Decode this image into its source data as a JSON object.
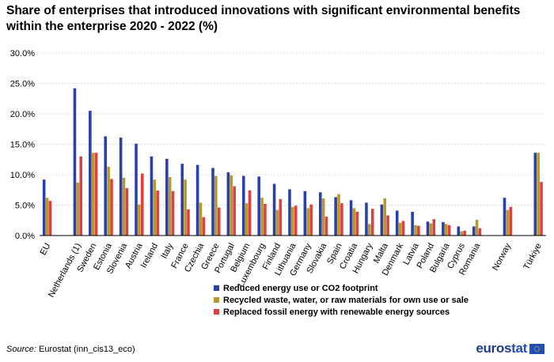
{
  "title": "Share of enterprises that introduced innovations with significant environmental benefits within the enterprise 2020 - 2022 (%)",
  "source_label": "Source:",
  "source_value": "Eurostat (inn_cis13_eco)",
  "logo_text": "eurostat",
  "colors": {
    "series_1": "#2a3fa8",
    "series_2": "#b8982a",
    "series_3": "#dc4040",
    "grid": "#d9d9d9",
    "logo_dark": "#1e3c8c",
    "logo_light": "#1f4fb4"
  },
  "chart_data": {
    "type": "bar",
    "title": "Share of enterprises that introduced innovations with significant environmental benefits within the enterprise 2020 - 2022 (%)",
    "xlabel": "",
    "ylabel": "",
    "ylim": [
      0,
      30
    ],
    "yticks": [
      0,
      5,
      10,
      15,
      20,
      25,
      30
    ],
    "ytick_labels": [
      "0.0%",
      "5.0%",
      "10.0%",
      "15.0%",
      "20.0%",
      "25.0%",
      "30.0%"
    ],
    "grid": true,
    "legend_position": "bottom",
    "categories": [
      "EU",
      "Netherlands (1)",
      "Sweden",
      "Estonia",
      "Slovenia",
      "Austria",
      "Ireland",
      "Italy",
      "France",
      "Czechia",
      "Greece",
      "Portugal",
      "Belgium",
      "Luxembourg",
      "Finland",
      "Lithuania",
      "Germany",
      "Slovakia",
      "Spain",
      "Croatia",
      "Hungary",
      "Malta",
      "Denmark",
      "Latvia",
      "Poland",
      "Bulgaria",
      "Cyprus",
      "Romania",
      "Norway",
      "Türkiye"
    ],
    "gap_after": [
      "EU",
      "Romania",
      "Norway"
    ],
    "series": [
      {
        "name": "Reduced energy use or CO2 footprint",
        "values": [
          9.2,
          24.2,
          20.5,
          16.3,
          16.1,
          15.1,
          13.0,
          12.6,
          11.8,
          11.6,
          11.1,
          10.4,
          9.8,
          9.7,
          8.5,
          7.6,
          7.3,
          7.1,
          6.3,
          5.8,
          5.4,
          5.1,
          4.1,
          3.9,
          2.3,
          2.2,
          1.5,
          1.5,
          6.2,
          13.6
        ]
      },
      {
        "name": "Recycled waste, water, or raw materials for own use or sale",
        "values": [
          6.2,
          8.7,
          13.6,
          11.3,
          9.5,
          5.1,
          9.2,
          9.6,
          9.2,
          5.4,
          9.8,
          9.9,
          5.3,
          6.2,
          4.2,
          4.7,
          4.5,
          6.1,
          6.8,
          4.5,
          1.9,
          6.1,
          2.1,
          1.7,
          2.0,
          1.9,
          0.7,
          2.6,
          4.2,
          13.6
        ]
      },
      {
        "name": "Replaced fossil energy with renewable energy sources",
        "values": [
          5.7,
          13.0,
          13.6,
          9.3,
          7.8,
          10.2,
          7.4,
          7.3,
          4.3,
          3.0,
          4.6,
          8.1,
          7.4,
          5.2,
          6.0,
          4.9,
          5.1,
          3.1,
          5.3,
          3.9,
          4.4,
          3.3,
          2.4,
          1.6,
          2.7,
          1.7,
          0.8,
          1.2,
          4.7,
          8.8
        ]
      }
    ]
  }
}
